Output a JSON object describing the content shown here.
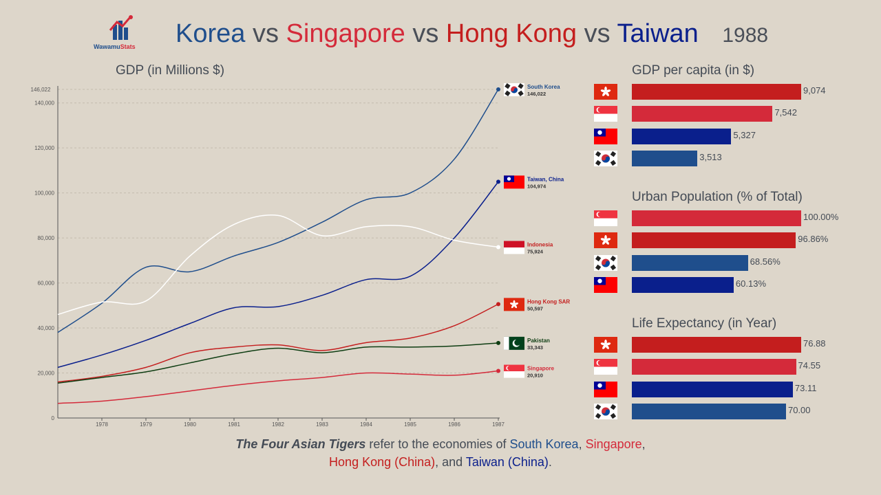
{
  "brand": {
    "part1": "Wawamu",
    "part2": "Stats"
  },
  "title": {
    "c1": "Korea",
    "vs1": "vs",
    "c2": "Singapore",
    "vs2": "vs",
    "c3": "Hong Kong",
    "vs3": "vs",
    "c4": "Taiwan",
    "year": "1988"
  },
  "colors": {
    "korea": "#1f4e8c",
    "singapore": "#d42a3a",
    "hongkong": "#c41e1e",
    "taiwan": "#0a1f8c",
    "pakistan": "#0e3d12",
    "indonesia": "#ffffff"
  },
  "chart_data": {
    "type": "line",
    "title": "GDP (in Millions $)",
    "x": [
      1977,
      1978,
      1979,
      1980,
      1981,
      1982,
      1983,
      1984,
      1985,
      1986,
      1987
    ],
    "xticks": [
      "1978",
      "1979",
      "1980",
      "1981",
      "1982",
      "1983",
      "1984",
      "1985",
      "1986",
      "1987"
    ],
    "yticks": [
      "0",
      "20,000",
      "40,000",
      "60,000",
      "80,000",
      "100,000",
      "120,000",
      "140,000"
    ],
    "ymax_label": "146,022",
    "ylim": [
      0,
      146022
    ],
    "xlim": [
      1977,
      1987
    ],
    "grid": true,
    "series": [
      {
        "name": "South Korea",
        "value_label": "146,022",
        "color": "#1f4e8c",
        "flag": "korea",
        "values": [
          38000,
          51000,
          67000,
          65000,
          72000,
          78000,
          87000,
          97000,
          100000,
          115000,
          146022
        ]
      },
      {
        "name": "Taiwan, China",
        "value_label": "104,974",
        "color": "#0a1f8c",
        "flag": "taiwan",
        "values": [
          22500,
          28000,
          34500,
          42000,
          49000,
          49500,
          54500,
          61500,
          63000,
          80000,
          104974
        ]
      },
      {
        "name": "Indonesia",
        "value_label": "75,924",
        "color": "#ffffff",
        "flag": "indonesia",
        "values": [
          46000,
          51500,
          52000,
          72000,
          86000,
          90000,
          81000,
          85000,
          85000,
          79000,
          75924
        ]
      },
      {
        "name": "Hong Kong SAR",
        "value_label": "50,597",
        "color": "#c41e1e",
        "flag": "hongkong",
        "values": [
          16000,
          18500,
          22500,
          29000,
          31500,
          32500,
          30000,
          33500,
          35500,
          41000,
          50597
        ]
      },
      {
        "name": "Pakistan",
        "value_label": "33,343",
        "color": "#0e3d12",
        "flag": "pakistan",
        "values": [
          15500,
          18000,
          20500,
          24500,
          28500,
          31000,
          29000,
          31500,
          31500,
          32000,
          33343
        ]
      },
      {
        "name": "Singapore",
        "value_label": "20,910",
        "color": "#d42a3a",
        "flag": "singapore",
        "values": [
          6500,
          7500,
          9500,
          12000,
          14500,
          16500,
          18000,
          20000,
          19500,
          19000,
          20910
        ]
      }
    ]
  },
  "panels": [
    {
      "title": "GDP per capita (in $)",
      "max": 9074,
      "rows": [
        {
          "country": "hongkong",
          "value": 9074,
          "label": "9,074",
          "color": "#c41e1e"
        },
        {
          "country": "singapore",
          "value": 7542,
          "label": "7,542",
          "color": "#d42a3a"
        },
        {
          "country": "taiwan",
          "value": 5327,
          "label": "5,327",
          "color": "#0a1f8c"
        },
        {
          "country": "korea",
          "value": 3513,
          "label": "3,513",
          "color": "#1f4e8c"
        }
      ]
    },
    {
      "title": "Urban Population (% of Total)",
      "max": 100,
      "rows": [
        {
          "country": "singapore",
          "value": 100.0,
          "label": "100.00%",
          "color": "#d42a3a"
        },
        {
          "country": "hongkong",
          "value": 96.86,
          "label": "96.86%",
          "color": "#c41e1e"
        },
        {
          "country": "korea",
          "value": 68.56,
          "label": "68.56%",
          "color": "#1f4e8c"
        },
        {
          "country": "taiwan",
          "value": 60.13,
          "label": "60.13%",
          "color": "#0a1f8c"
        }
      ]
    },
    {
      "title": "Life Expectancy (in Year)",
      "max": 76.88,
      "min": 0,
      "rows": [
        {
          "country": "hongkong",
          "value": 76.88,
          "label": "76.88",
          "color": "#c41e1e"
        },
        {
          "country": "singapore",
          "value": 74.55,
          "label": "74.55",
          "color": "#d42a3a"
        },
        {
          "country": "taiwan",
          "value": 73.11,
          "label": "73.11",
          "color": "#0a1f8c"
        },
        {
          "country": "korea",
          "value": 70.0,
          "label": "70.00",
          "color": "#1f4e8c"
        }
      ]
    }
  ],
  "footer": {
    "lead": "The Four Asian Tigers",
    "text1": " refer to the economies of ",
    "kr": "South Korea",
    "comma1": ", ",
    "sg": "Singapore",
    "comma2": ",",
    "hk": "Hong Kong (China)",
    "and": ", and ",
    "tw": "Taiwan (China)",
    "end": "."
  }
}
